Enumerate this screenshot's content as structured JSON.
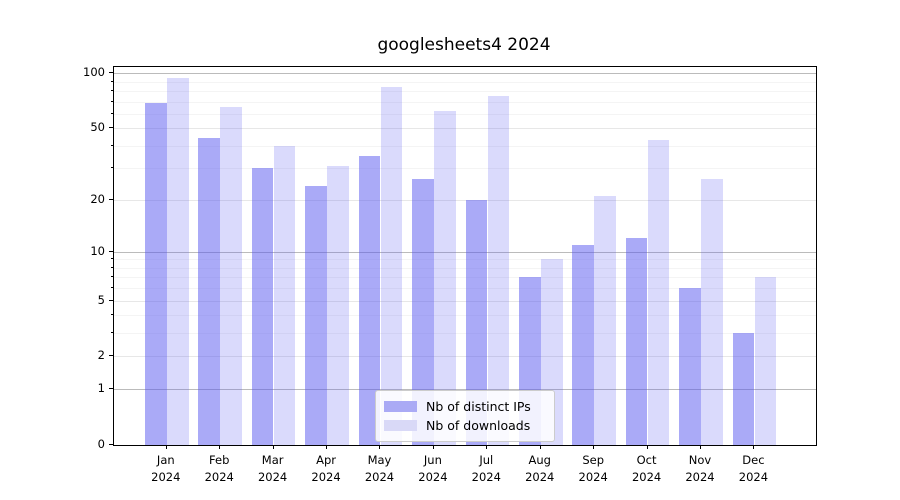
{
  "title": "googlesheets4 2024",
  "chart_data": {
    "type": "bar",
    "scale": "log1p",
    "title": "googlesheets4 2024",
    "xlabel": "",
    "ylabel": "",
    "categories": [
      "Jan\n2024",
      "Feb\n2024",
      "Mar\n2024",
      "Apr\n2024",
      "May\n2024",
      "Jun\n2024",
      "Jul\n2024",
      "Aug\n2024",
      "Sep\n2024",
      "Oct\n2024",
      "Nov\n2024",
      "Dec\n2024"
    ],
    "series": [
      {
        "name": "Nb of distinct IPs",
        "values": [
          69,
          44,
          30,
          24,
          35,
          26,
          20,
          7,
          11,
          12,
          6,
          3
        ],
        "fill": "rgba(85,85,240,0.5)",
        "swatch": "#aaaaf5"
      },
      {
        "name": "Nb of downloads",
        "values": [
          94,
          65,
          40,
          31,
          84,
          62,
          75,
          9,
          21,
          43,
          26,
          7
        ],
        "fill": "rgba(85,85,240,0.22)",
        "swatch": "#d9d9f7"
      }
    ],
    "y_ticks": [
      0,
      1,
      2,
      5,
      10,
      20,
      50,
      100
    ],
    "y_major_gridlines": [
      1,
      10,
      100
    ],
    "y_minor_gridlines": [
      3,
      4,
      6,
      7,
      8,
      9,
      30,
      40,
      60,
      70,
      80,
      90
    ],
    "ylim": [
      0,
      108
    ],
    "grid": true,
    "legend_position": "lower center",
    "colors": {
      "major_grid": "#bbbbbb",
      "labeled_grid": "#e7e7e7",
      "minor_grid": "#f4f4f4",
      "axis": "#000000"
    }
  }
}
